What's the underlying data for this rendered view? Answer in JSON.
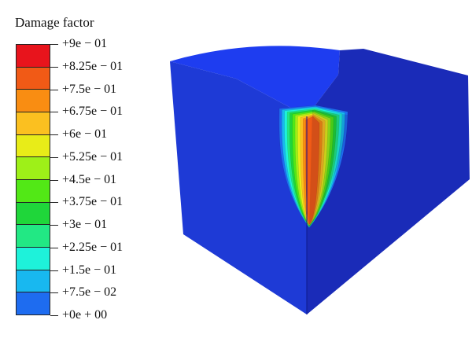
{
  "legend": {
    "title": "Damage factor",
    "levels": [
      {
        "label": "+9e − 01",
        "color": "#e8141c"
      },
      {
        "label": "+8.25e − 01",
        "color": "#f15a16"
      },
      {
        "label": "+7.5e − 01",
        "color": "#f98d12"
      },
      {
        "label": "+6.75e − 01",
        "color": "#fbc020"
      },
      {
        "label": "+6e − 01",
        "color": "#e8ec18"
      },
      {
        "label": "+5.25e − 01",
        "color": "#9ef018"
      },
      {
        "label": "+4.5e − 01",
        "color": "#52e816"
      },
      {
        "label": "+3.75e − 01",
        "color": "#1fd63a"
      },
      {
        "label": "+3e − 01",
        "color": "#22e884"
      },
      {
        "label": "+2.25e − 01",
        "color": "#1ef2da"
      },
      {
        "label": "+1.5e − 01",
        "color": "#18b8f0"
      },
      {
        "label": "+7.5e − 02",
        "color": "#1e6cf0"
      },
      {
        "label": "+0e + 00",
        "color": "#1a22ec"
      }
    ]
  },
  "model": {
    "face_colors": {
      "top": "#1e3df0",
      "left": "#1e3ad6",
      "right": "#1a2bb8"
    }
  }
}
